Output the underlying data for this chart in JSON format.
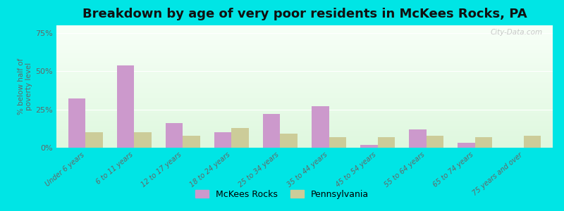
{
  "title": "Breakdown by age of very poor residents in McKees Rocks, PA",
  "ylabel": "% below half of\npoverty level",
  "categories": [
    "Under 6 years",
    "6 to 11 years",
    "12 to 17 years",
    "18 to 24 years",
    "25 to 34 years",
    "35 to 44 years",
    "45 to 54 years",
    "55 to 64 years",
    "65 to 74 years",
    "75 years and over"
  ],
  "mckees_rocks": [
    32,
    54,
    16,
    10,
    22,
    27,
    2,
    12,
    3,
    0
  ],
  "pennsylvania": [
    10,
    10,
    8,
    13,
    9,
    7,
    7,
    8,
    7,
    8
  ],
  "mckees_color": "#cc99cc",
  "pa_color": "#cccc99",
  "outer_bg": "#00e5e5",
  "ylim": [
    0,
    80
  ],
  "yticks": [
    0,
    25,
    50,
    75
  ],
  "ytick_labels": [
    "0%",
    "25%",
    "50%",
    "75%"
  ],
  "bar_width": 0.35,
  "title_fontsize": 13,
  "legend_labels": [
    "McKees Rocks",
    "Pennsylvania"
  ],
  "watermark": "City-Data.com"
}
